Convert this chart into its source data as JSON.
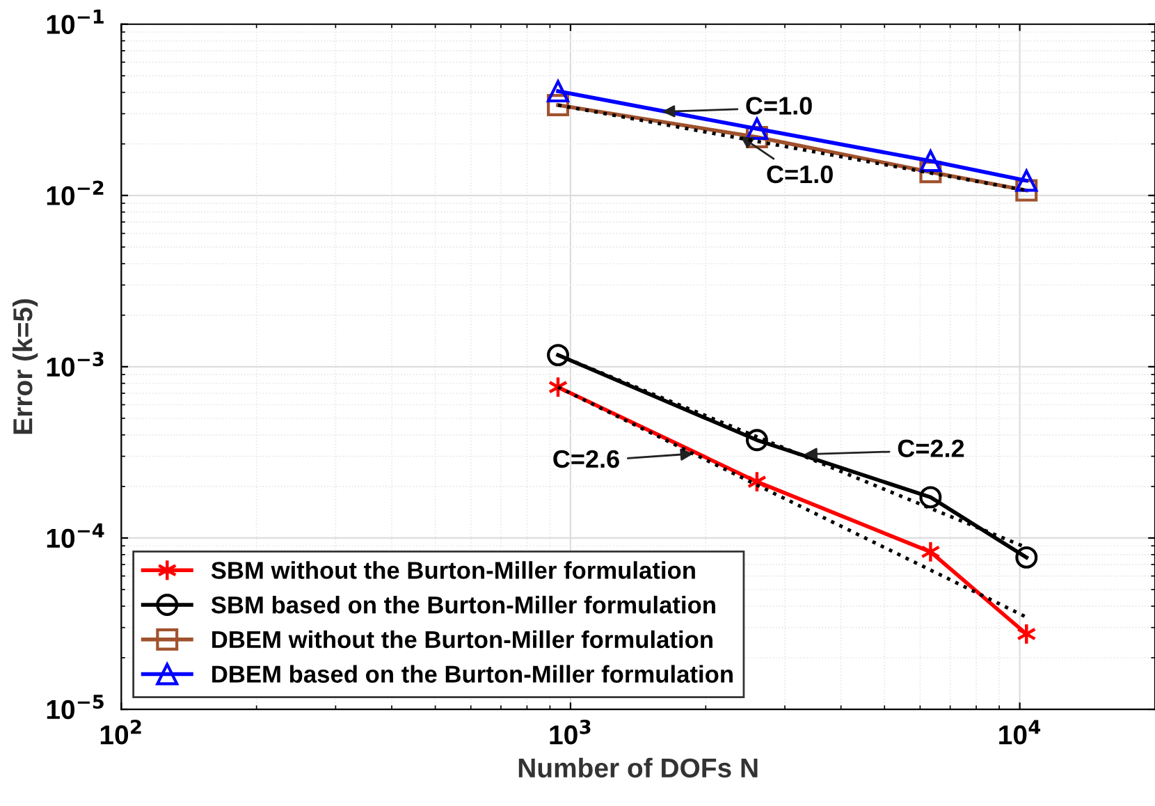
{
  "chart_data": {
    "type": "line",
    "xlabel": "Number of DOFs N",
    "ylabel": "Error (k=5)",
    "log": "xy",
    "grid": true,
    "legend": "bottom left",
    "xlim": [
      100,
      20000
    ],
    "ylim": [
      1e-05,
      0.1
    ],
    "xticks": [
      {
        "value": 100,
        "label": "10$^{2}$"
      },
      {
        "value": 1000,
        "label": "10$^{3}$"
      },
      {
        "value": 10000,
        "label": "10$^{4}$"
      }
    ],
    "yticks": [
      {
        "value": 1e-05,
        "label": "10$^{−5}$"
      },
      {
        "value": 0.0001,
        "label": "10$^{−4}$"
      },
      {
        "value": 0.001,
        "label": "10$^{−3}$"
      },
      {
        "value": 0.01,
        "label": "10$^{−2}$"
      },
      {
        "value": 0.1,
        "label": "10$^{−1}$"
      }
    ],
    "x": [
      938,
      2600,
      6330,
      10350
    ],
    "series": [
      {
        "name": "SBM without the Burton-Miller formulation",
        "color": "#ff0000",
        "marker": "cross",
        "values": [
          0.00076,
          0.000213,
          8.3e-05,
          2.75e-05
        ]
      },
      {
        "name": "SBM based on the Burton-Miller formulation",
        "color": "#000000",
        "marker": "circle",
        "values": [
          0.00117,
          0.000373,
          0.000173,
          7.7e-05
        ]
      },
      {
        "name": "DBEM without the Burton-Miller formulation",
        "color": "#a0522d",
        "marker": "square",
        "values": [
          0.0337,
          0.0219,
          0.0137,
          0.0107
        ]
      },
      {
        "name": "DBEM based on the Burton-Miller formulation",
        "color": "#0000ff",
        "marker": "triangle",
        "values": [
          0.0406,
          0.0245,
          0.0159,
          0.0122
        ]
      },
      {
        "color": "#000000",
        "line_style": "dotted",
        "marker": "none",
        "values": [
          0.00076,
          0.000204,
          6.5e-05,
          3.45e-05
        ]
      },
      {
        "color": "#000000",
        "line_style": "dotted",
        "marker": "none",
        "values": [
          0.00117,
          0.00039,
          0.000149,
          8.8e-05
        ]
      },
      {
        "color": "#000000",
        "line_style": "dotted",
        "marker": "none",
        "values": [
          0.0337,
          0.0207,
          0.01353,
          0.0107
        ]
      }
    ],
    "annotations": [
      {
        "text": "C=1.0",
        "x": 1567,
        "y": 0.0308
      },
      {
        "text": "C=1.0",
        "x": 2348,
        "y": 0.02286
      },
      {
        "text": "C=2.2",
        "x": 3249,
        "y": 0.0003078
      },
      {
        "text": "C=2.6",
        "x": 1915,
        "y": 0.0003119
      }
    ]
  }
}
